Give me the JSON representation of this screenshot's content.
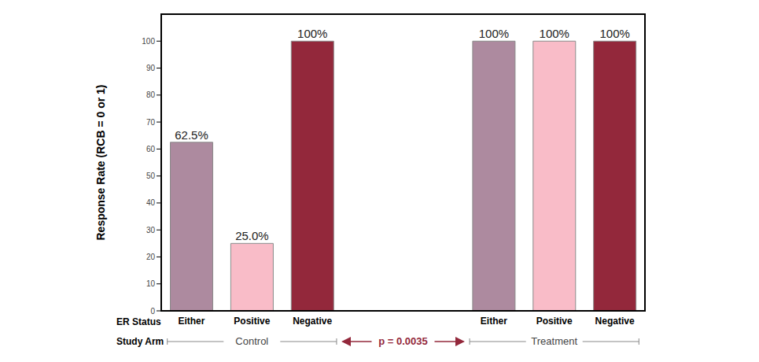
{
  "chart_data": {
    "type": "bar",
    "ylabel": "Response Rate (RCB = 0 or 1)",
    "categories": [
      "Either",
      "Positive",
      "Negative",
      null,
      null,
      "Either",
      "Positive",
      "Negative"
    ],
    "values": [
      62.5,
      25,
      100,
      null,
      null,
      100,
      100,
      100
    ],
    "value_labels": [
      "62.5%",
      "25.0%",
      "100%",
      null,
      null,
      "100%",
      "100%",
      "100%"
    ],
    "colors": [
      "#ad8a9f",
      "#f9bcc8",
      "#93283b",
      null,
      null,
      "#ad8a9f",
      "#f9bcc8",
      "#93283b"
    ],
    "ylim": [
      0,
      110
    ],
    "yticks": [
      0,
      10,
      20,
      30,
      40,
      50,
      60,
      70,
      80,
      90,
      100
    ],
    "grid": false,
    "data_labels": true,
    "row_labels": [
      "ER Status",
      "Study Arm"
    ],
    "groups": [
      {
        "label": "Control",
        "first": 0,
        "last": 2
      },
      {
        "label": "Treatment",
        "first": 5,
        "last": 7
      }
    ],
    "annotation": {
      "text": "p = 0.0035",
      "from": "Control",
      "to": "Treatment"
    }
  }
}
